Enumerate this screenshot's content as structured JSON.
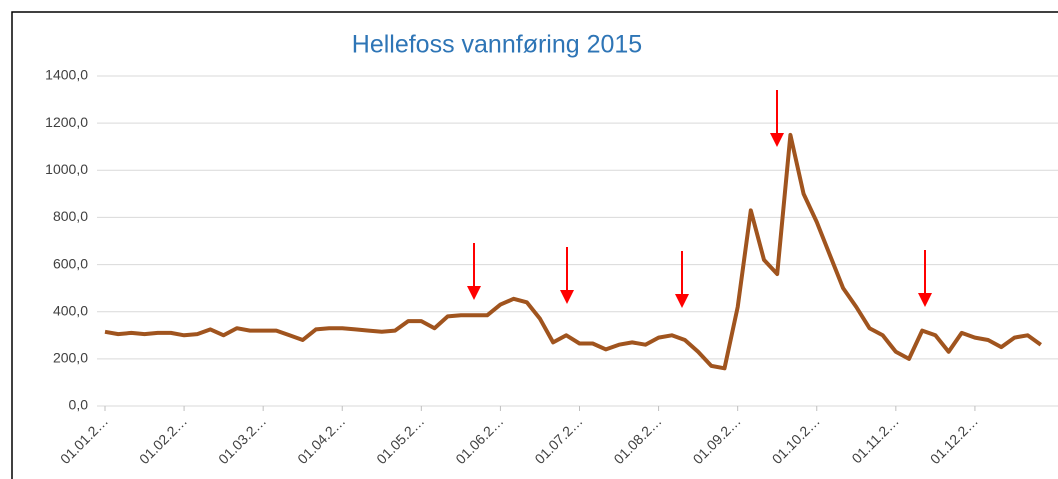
{
  "chart_data": {
    "type": "line",
    "title": "Hellefoss vannføring 2015",
    "categories": [
      "01.01.2…",
      null,
      null,
      null,
      null,
      null,
      "01.02.2…",
      null,
      null,
      null,
      null,
      null,
      "01.03.2…",
      null,
      null,
      null,
      null,
      null,
      "01.04.2…",
      null,
      null,
      null,
      null,
      null,
      "01.05.2…",
      null,
      null,
      null,
      null,
      null,
      "01.06.2…",
      null,
      null,
      null,
      null,
      null,
      "01.07.2…",
      null,
      null,
      null,
      null,
      null,
      "01.08.2…",
      null,
      null,
      null,
      null,
      null,
      "01.09.2…",
      null,
      null,
      null,
      null,
      null,
      "01.10.2…",
      null,
      null,
      null,
      null,
      null,
      "01.11.2…",
      null,
      null,
      null,
      null,
      null,
      "01.12.2…",
      null,
      null,
      null,
      null,
      null
    ],
    "series": [
      {
        "name": "Vannføring",
        "color": "#a0541e",
        "values": [
          315,
          305,
          310,
          305,
          310,
          310,
          300,
          305,
          325,
          300,
          330,
          320,
          320,
          320,
          300,
          280,
          325,
          330,
          330,
          325,
          320,
          315,
          320,
          360,
          360,
          330,
          380,
          385,
          385,
          385,
          430,
          455,
          440,
          370,
          270,
          300,
          265,
          265,
          240,
          260,
          270,
          260,
          290,
          300,
          280,
          230,
          170,
          160,
          420,
          830,
          620,
          560,
          1150,
          900,
          780,
          640,
          500,
          420,
          330,
          300,
          230,
          200,
          320,
          300,
          230,
          310,
          290,
          280,
          250,
          290,
          300,
          260
        ]
      }
    ],
    "ylim": [
      0,
      1400
    ],
    "yticks": [
      {
        "value": 0,
        "label": "0,0"
      },
      {
        "value": 200,
        "label": "200,0"
      },
      {
        "value": 400,
        "label": "400,0"
      },
      {
        "value": 600,
        "label": "600,0"
      },
      {
        "value": 800,
        "label": "800,0"
      },
      {
        "value": 1000,
        "label": "1000,0"
      },
      {
        "value": 1200,
        "label": "1200,0"
      },
      {
        "value": 1400,
        "label": "1400,0"
      }
    ],
    "grid": true
  }
}
